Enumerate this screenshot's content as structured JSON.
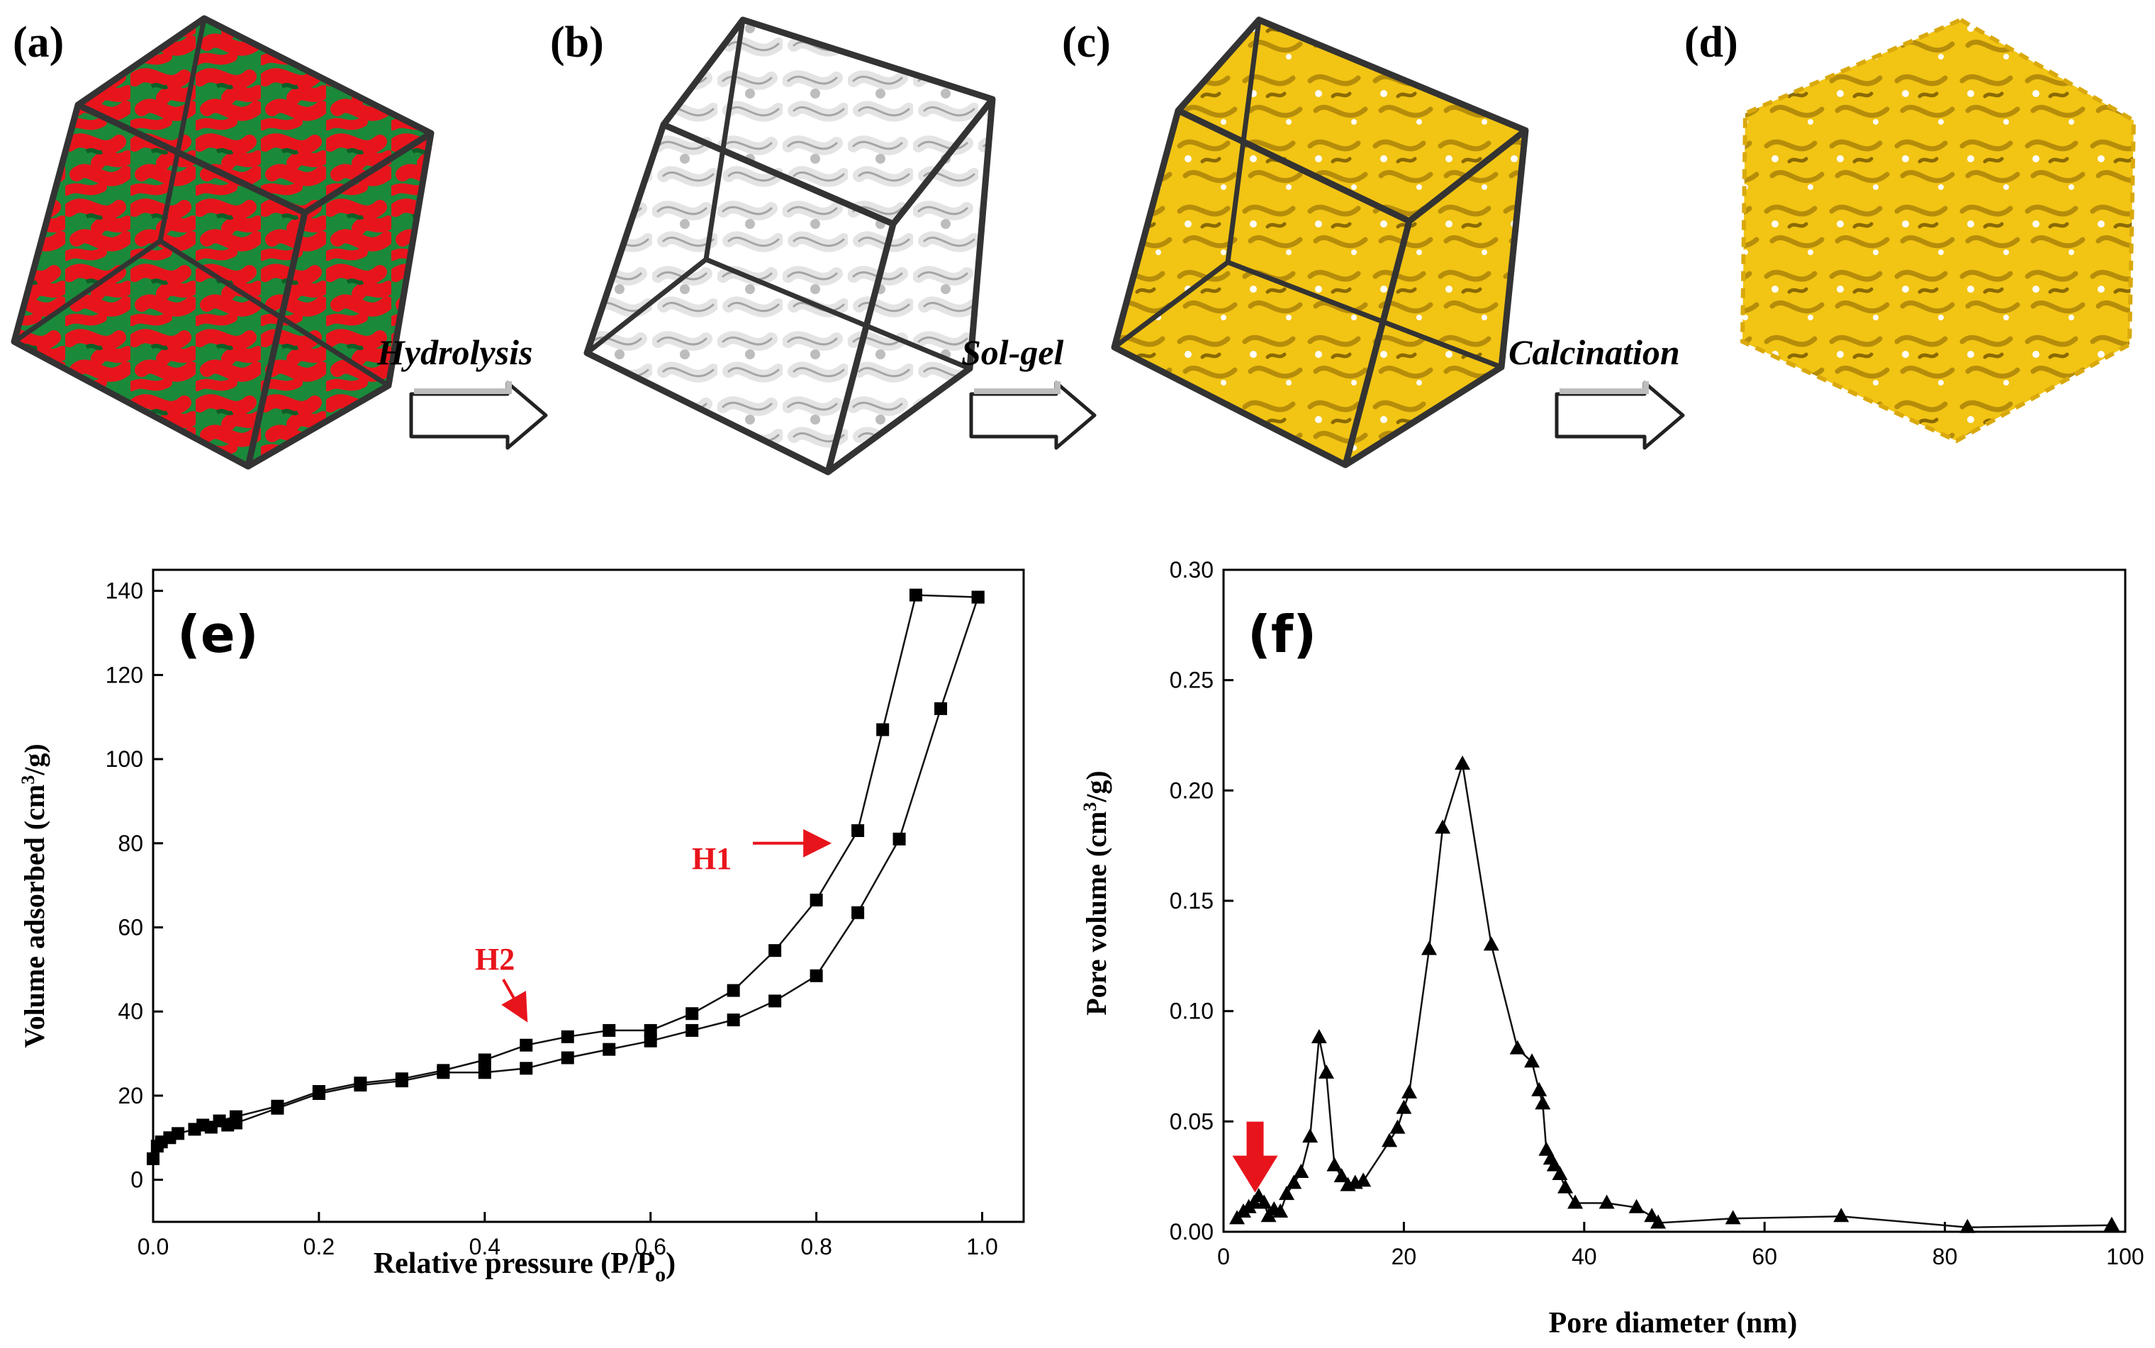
{
  "panels": {
    "a": "(a)",
    "b": "(b)",
    "c": "(c)",
    "d": "(d)",
    "e": "(e)",
    "f": "(f)"
  },
  "steps": [
    "Hydrolysis",
    "Sol-gel",
    "Calcination"
  ],
  "colors": {
    "red_phase": "#e8141c",
    "green_phase": "#1a8a3a",
    "gold": "#f2c414",
    "gold_dark": "#a07d06",
    "white_frame": "#f2f2f2",
    "white_dark": "#9a9a9a",
    "annotation": "#e8141c",
    "cube_edge": "#333333"
  },
  "icons": {
    "arrow": "hollow-right-arrow",
    "cube": "wireframe-cube"
  },
  "chart_data": [
    {
      "id": "e",
      "type": "line",
      "xlabel_main": "Relative pressure (P/P",
      "xlabel_sub": "o",
      "xlabel_end": ")",
      "ylabel_main": "Volume adsorbed (cm",
      "ylabel_sup": "3",
      "ylabel_end": "/g)",
      "xlim": [
        0,
        1.05
      ],
      "ylim": [
        -10,
        145
      ],
      "xticks": [
        "0.0",
        "0.2",
        "0.4",
        "0.6",
        "0.8",
        "1.0"
      ],
      "xtick_values": [
        0,
        0.2,
        0.4,
        0.6,
        0.8,
        1.0
      ],
      "yticks": [
        "0",
        "20",
        "40",
        "60",
        "80",
        "100",
        "120",
        "140"
      ],
      "ytick_values": [
        0,
        20,
        40,
        60,
        80,
        100,
        120,
        140
      ],
      "marker": "square",
      "series": [
        {
          "name": "adsorption",
          "x": [
            0.0,
            0.005,
            0.01,
            0.02,
            0.03,
            0.05,
            0.07,
            0.09,
            0.1,
            0.15,
            0.2,
            0.25,
            0.3,
            0.35,
            0.4,
            0.45,
            0.5,
            0.55,
            0.6,
            0.65,
            0.7,
            0.75,
            0.8,
            0.85,
            0.9,
            0.95,
            0.995
          ],
          "y": [
            5,
            8,
            9,
            10,
            11,
            12,
            12.5,
            13,
            13.5,
            17,
            20.5,
            22.5,
            23.5,
            25.5,
            25.5,
            26.5,
            29,
            31,
            33,
            35.5,
            38,
            42.5,
            48.5,
            63.5,
            81,
            112,
            138.5
          ]
        },
        {
          "name": "desorption",
          "x": [
            0.995,
            0.92,
            0.88,
            0.85,
            0.8,
            0.75,
            0.7,
            0.65,
            0.6,
            0.55,
            0.5,
            0.45,
            0.4,
            0.35,
            0.3,
            0.25,
            0.2,
            0.15,
            0.1,
            0.08,
            0.06
          ],
          "y": [
            138.5,
            139,
            107,
            83,
            66.5,
            54.5,
            45,
            39.5,
            35.5,
            35.5,
            34,
            32,
            28.5,
            26,
            24,
            23,
            21,
            17.5,
            15,
            14,
            13
          ]
        }
      ],
      "annotations": [
        {
          "label": "H1",
          "points_to": [
            0.815,
            80
          ]
        },
        {
          "label": "H2",
          "points_to": [
            0.45,
            38
          ]
        }
      ]
    },
    {
      "id": "f",
      "type": "line",
      "xlabel": "Pore diameter (nm)",
      "ylabel_main": "Pore volume (cm",
      "ylabel_sup": "3",
      "ylabel_end": "/g)",
      "xlim": [
        0,
        100
      ],
      "ylim": [
        0,
        0.3
      ],
      "xticks": [
        "0",
        "20",
        "40",
        "60",
        "80",
        "100"
      ],
      "xtick_values": [
        0,
        20,
        40,
        60,
        80,
        100
      ],
      "yticks": [
        "0.00",
        "0.05",
        "0.10",
        "0.15",
        "0.20",
        "0.25",
        "0.30"
      ],
      "ytick_values": [
        0,
        0.05,
        0.1,
        0.15,
        0.2,
        0.25,
        0.3
      ],
      "marker": "triangle",
      "series": [
        {
          "name": "pore size distribution",
          "x": [
            1.5,
            2.2,
            2.8,
            3.4,
            3.9,
            4.5,
            5.0,
            5.6,
            6.3,
            7.0,
            7.8,
            8.6,
            9.6,
            10.6,
            11.4,
            12.3,
            13.1,
            13.8,
            14.6,
            15.5,
            18.4,
            19.3,
            20.0,
            20.6,
            22.8,
            24.3,
            26.5,
            29.7,
            32.6,
            34.2,
            35.0,
            35.4,
            35.8,
            36.3,
            36.7,
            37.3,
            37.9,
            39.0,
            42.5,
            45.8,
            47.5,
            48.2,
            56.5,
            68.5,
            82.5,
            98.5
          ],
          "y": [
            0.006,
            0.009,
            0.011,
            0.013,
            0.016,
            0.013,
            0.007,
            0.01,
            0.009,
            0.017,
            0.022,
            0.027,
            0.043,
            0.088,
            0.072,
            0.03,
            0.025,
            0.021,
            0.022,
            0.023,
            0.041,
            0.047,
            0.056,
            0.063,
            0.128,
            0.183,
            0.212,
            0.13,
            0.083,
            0.077,
            0.064,
            0.058,
            0.037,
            0.033,
            0.03,
            0.026,
            0.02,
            0.013,
            0.013,
            0.011,
            0.007,
            0.004,
            0.006,
            0.007,
            0.002,
            0.003
          ]
        }
      ],
      "annotations": [
        {
          "type": "arrow",
          "points_to": [
            3.5,
            0.012
          ]
        }
      ]
    }
  ]
}
